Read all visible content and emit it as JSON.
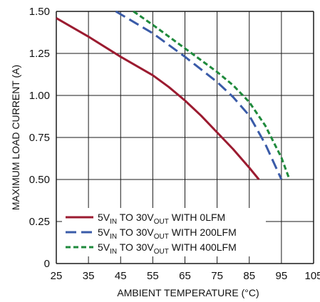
{
  "chart_data": {
    "type": "line",
    "xlabel": "AMBIENT TEMPERATURE (°C)",
    "ylabel": "MAXIMUM LOAD CURRENT (A)",
    "xlim": [
      25,
      105
    ],
    "ylim": [
      0,
      1.5
    ],
    "x_ticks": [
      "25",
      "35",
      "45",
      "55",
      "65",
      "75",
      "85",
      "95",
      "105"
    ],
    "y_ticks": [
      "0",
      "0.25",
      "0.50",
      "0.75",
      "1.00",
      "1.25",
      "1.50"
    ],
    "grid": true,
    "legend_position": "bottom-left",
    "series": [
      {
        "name": "5VIN TO 30VOUT WITH 0LFM",
        "color": "#9b1b30",
        "dash": "solid",
        "x": [
          25,
          35,
          45,
          55,
          60,
          65,
          70,
          75,
          80,
          85,
          88
        ],
        "y": [
          1.46,
          1.35,
          1.23,
          1.12,
          1.05,
          0.97,
          0.88,
          0.78,
          0.68,
          0.57,
          0.5
        ]
      },
      {
        "name": "5VIN TO 30VOUT WITH 200LFM",
        "color": "#3a5ba8",
        "dash": "longdash",
        "x": [
          43.5,
          55,
          65,
          75,
          80,
          85,
          90,
          95
        ],
        "y": [
          1.5,
          1.37,
          1.23,
          1.08,
          0.99,
          0.88,
          0.71,
          0.5
        ]
      },
      {
        "name": "5VIN TO 30VOUT WITH 400LFM",
        "color": "#1f8a3c",
        "dash": "shortdash",
        "x": [
          49,
          55,
          65,
          75,
          80,
          85,
          90,
          95,
          97.5
        ],
        "y": [
          1.5,
          1.42,
          1.28,
          1.14,
          1.06,
          0.96,
          0.82,
          0.63,
          0.5
        ]
      }
    ]
  },
  "legend": [
    {
      "pre": "5V",
      "sub1": "IN",
      "mid": " TO 30V",
      "sub2": "OUT",
      "post": " WITH 0LFM"
    },
    {
      "pre": "5V",
      "sub1": "IN",
      "mid": " TO 30V",
      "sub2": "OUT",
      "post": " WITH 200LFM"
    },
    {
      "pre": "5V",
      "sub1": "IN",
      "mid": " TO 30V",
      "sub2": "OUT",
      "post": " WITH 400LFM"
    }
  ]
}
